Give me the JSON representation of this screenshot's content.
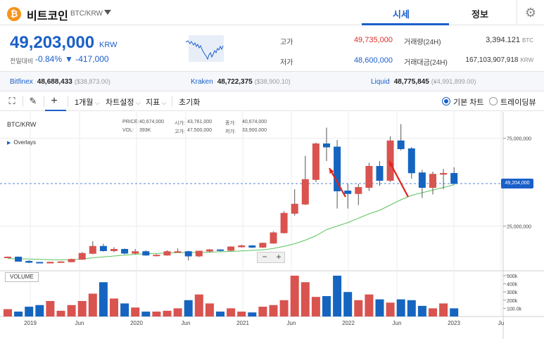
{
  "header": {
    "logo_glyph": "₿",
    "coin_name": "비트코인",
    "pair": "BTC/KRW",
    "tab_quote": "시세",
    "tab_info": "정보",
    "settings_icon": "gear-icon"
  },
  "summary": {
    "price": "49,203,000",
    "unit": "KRW",
    "change_label": "전일대비",
    "change_pct": "-0.84%",
    "change_abs": "▼ -417,000",
    "high_label": "고가",
    "high_value": "49,735,000",
    "low_label": "저가",
    "low_value": "48,600,000",
    "volume_label": "거래량(24H)",
    "volume_value": "3,394.121",
    "volume_unit": "BTC",
    "amount_label": "거래대금(24H)",
    "amount_value": "167,103,907,918",
    "amount_unit": "KRW"
  },
  "exchanges": [
    {
      "name": "Bitfinex",
      "price": "48,688,433",
      "sub": "($38,873.00)"
    },
    {
      "name": "Kraken",
      "price": "48,722,375",
      "sub": "($38,900.10)"
    },
    {
      "name": "Liquid",
      "price": "48,775,845",
      "sub": "(¥4,991,899.00)"
    }
  ],
  "toolbar": {
    "period": "1개월",
    "chart_settings": "차트설정",
    "indicator": "지표",
    "reset": "초기화",
    "basic_chart": "기본 차트",
    "tradingview": "트레이딩뷰"
  },
  "chart": {
    "pair_label": "BTC/KRW",
    "overlays_label": "Overlays",
    "price_label": "PRICE:",
    "price_value": "40,674,000",
    "open_label": "시가:",
    "open_value": "43,761,000",
    "close_label": "종가:",
    "close_value": "40,674,000",
    "vol_label": "VOL:",
    "vol_value": "393K",
    "high_label": "고가:",
    "high_value": "47,500,000",
    "low_label": "저가:",
    "low_value": "33,900,000",
    "current_price_tag": "49,204,000",
    "volume_button": "VOLUME",
    "zoom_out": "−",
    "zoom_in": "+"
  },
  "chart_data": {
    "type": "candlestick",
    "x_tick_labels": [
      "2019",
      "Jun",
      "2020",
      "Jun",
      "2021",
      "Jun",
      "2022",
      "Jun",
      "2023",
      "Ju"
    ],
    "y_tick_labels": [
      "75,000,000",
      "25,000,000"
    ],
    "volume_tick_labels": [
      "500k",
      "400k",
      "300k",
      "200k",
      "100.0k"
    ],
    "colors": {
      "up": "#d9534f",
      "down": "#1565c0",
      "ma": "#5cc45c",
      "annotation_arrow": "#e0251b"
    },
    "months": [
      "2018-10",
      "2018-11",
      "2018-12",
      "2019-01",
      "2019-02",
      "2019-03",
      "2019-04",
      "2019-05",
      "2019-06",
      "2019-07",
      "2019-08",
      "2019-09",
      "2019-10",
      "2019-11",
      "2019-12",
      "2020-01",
      "2020-02",
      "2020-03",
      "2020-04",
      "2020-05",
      "2020-06",
      "2020-07",
      "2020-08",
      "2020-09",
      "2020-10",
      "2020-11",
      "2020-12",
      "2021-01",
      "2021-02",
      "2021-03",
      "2021-04",
      "2021-05",
      "2021-06",
      "2021-07",
      "2021-08",
      "2021-09",
      "2021-10",
      "2021-11",
      "2021-12",
      "2022-01",
      "2022-02",
      "2022-03",
      "2022-04"
    ],
    "open": [
      7.2,
      7.4,
      5.0,
      4.4,
      4.0,
      4.5,
      4.7,
      6.1,
      9.5,
      13.5,
      11.0,
      11.8,
      9.6,
      10.5,
      8.5,
      8.5,
      10.5,
      10.5,
      8.0,
      10.8,
      11.5,
      11.2,
      13.2,
      13.8,
      13.0,
      15.3,
      21.2,
      32.3,
      37.5,
      51.5,
      71.8,
      70.0,
      45.0,
      43.5,
      47.0,
      59.0,
      51.0,
      73.5,
      69.0,
      55.3,
      47.0,
      54.5,
      55.0
    ],
    "high": [
      7.7,
      7.7,
      5.6,
      4.6,
      4.6,
      5.0,
      6.5,
      10.2,
      16.4,
      15.0,
      13.0,
      12.3,
      12.0,
      11.2,
      9.0,
      11.3,
      12.3,
      11.0,
      10.5,
      12.0,
      11.8,
      13.5,
      14.5,
      14.2,
      15.6,
      22.0,
      33.5,
      46.0,
      65.0,
      72.5,
      81.0,
      74.0,
      49.0,
      49.0,
      61.0,
      62.0,
      76.0,
      83.0,
      70.0,
      57.0,
      56.0,
      57.5,
      58.5
    ],
    "low": [
      6.8,
      4.9,
      4.0,
      3.9,
      3.8,
      4.3,
      4.5,
      5.8,
      9.0,
      10.5,
      10.2,
      9.0,
      8.9,
      8.2,
      7.8,
      8.2,
      10.0,
      5.5,
      7.4,
      10.0,
      10.7,
      10.8,
      12.8,
      12.5,
      12.6,
      15.0,
      20.8,
      31.0,
      37.0,
      50.0,
      62.0,
      35.0,
      35.0,
      37.0,
      45.0,
      48.0,
      50.0,
      68.0,
      52.0,
      41.0,
      43.0,
      46.0,
      48.6
    ],
    "close": [
      7.4,
      5.0,
      4.4,
      4.0,
      4.5,
      4.7,
      6.1,
      9.5,
      13.5,
      11.0,
      11.8,
      9.6,
      10.5,
      8.5,
      8.5,
      10.5,
      10.5,
      8.0,
      10.8,
      11.5,
      11.2,
      13.2,
      13.8,
      13.0,
      15.3,
      21.2,
      32.3,
      37.5,
      51.5,
      71.8,
      70.0,
      45.0,
      43.5,
      47.0,
      59.0,
      51.0,
      73.5,
      69.0,
      55.3,
      47.0,
      54.5,
      55.0,
      49.2
    ],
    "ma": [
      6.5,
      6.4,
      6.3,
      6.1,
      5.9,
      5.8,
      5.9,
      6.3,
      7.0,
      7.5,
      8.0,
      8.5,
      9.0,
      9.3,
      9.5,
      9.7,
      9.9,
      10.0,
      10.0,
      10.2,
      10.4,
      10.6,
      10.9,
      11.2,
      11.5,
      12.3,
      13.5,
      15.0,
      17.0,
      19.5,
      23.0,
      25.0,
      27.0,
      29.5,
      32.0,
      34.0,
      37.0,
      40.0,
      42.5,
      44.0,
      45.5,
      47.0,
      48.5
    ],
    "volume": [
      90,
      60,
      120,
      140,
      190,
      70,
      140,
      190,
      280,
      420,
      220,
      160,
      110,
      60,
      60,
      70,
      100,
      200,
      270,
      160,
      60,
      100,
      60,
      50,
      120,
      140,
      200,
      500,
      420,
      240,
      250,
      500,
      300,
      200,
      270,
      210,
      170,
      210,
      200,
      130,
      100,
      160,
      100
    ],
    "ylim": [
      0,
      90000000
    ],
    "y_unit_scale": 1000000,
    "current_price": 49204000
  }
}
